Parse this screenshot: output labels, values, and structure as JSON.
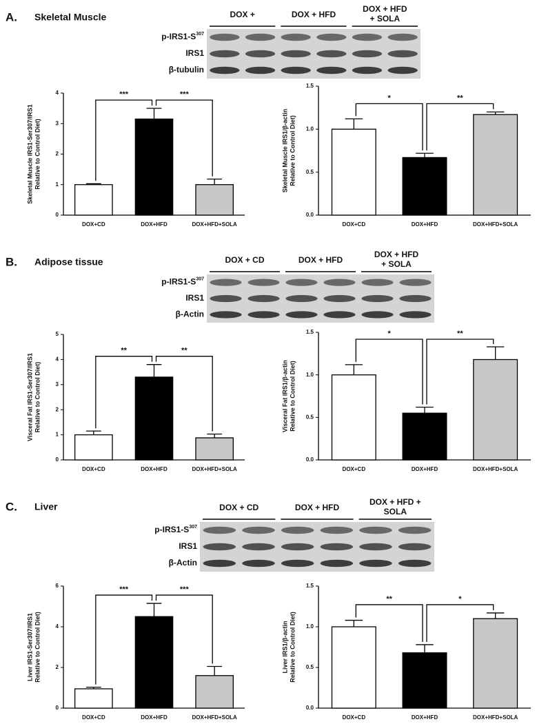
{
  "panels": [
    {
      "label": "A.",
      "title": "Skeletal Muscle",
      "lanes": [
        [
          "DOX +"
        ],
        [
          "DOX + HFD"
        ],
        [
          "DOX + HFD",
          "+ SOLA"
        ]
      ],
      "blot_rows": [
        {
          "text": "p-IRS1-S",
          "sup": "307"
        },
        {
          "text": "IRS1"
        },
        {
          "text": "β-tubulin"
        }
      ]
    },
    {
      "label": "B.",
      "title": "Adipose tissue",
      "lanes": [
        [
          "DOX + CD"
        ],
        [
          "DOX + HFD"
        ],
        [
          "DOX + HFD",
          "+ SOLA"
        ]
      ],
      "blot_rows": [
        {
          "text": "p-IRS1-S",
          "sup": "307"
        },
        {
          "text": "IRS1"
        },
        {
          "text": "β-Actin"
        }
      ]
    },
    {
      "label": "C.",
      "title": "Liver",
      "lanes": [
        [
          "DOX + CD"
        ],
        [
          "DOX + HFD"
        ],
        [
          "DOX + HFD +",
          "SOLA"
        ]
      ],
      "blot_rows": [
        {
          "text": "p-IRS1-S",
          "sup": "307"
        },
        {
          "text": "IRS1"
        },
        {
          "text": "β-Actin"
        }
      ]
    }
  ],
  "chart_data": [
    {
      "type": "bar",
      "y_label": [
        "Skeletal Muscle IRS1-Ser307/IRS1",
        "Relative to Control Diet)"
      ],
      "categories": [
        "DOX+CD",
        "DOX+HFD",
        "DOX+HFD+SOLA"
      ],
      "values": [
        1.0,
        3.15,
        1.0
      ],
      "errors": [
        0.03,
        0.35,
        0.18
      ],
      "colors": [
        "#ffffff",
        "#000000",
        "#c8c8c8"
      ],
      "ylim": [
        0,
        4
      ],
      "yticks": [
        0,
        1,
        2,
        3,
        4
      ],
      "annotations": [
        "***",
        "***"
      ]
    },
    {
      "type": "bar",
      "y_label": [
        "Skeletal Muscle IRS1/β-actin",
        "Relative to Control Diet)"
      ],
      "categories": [
        "DOX+CD",
        "DOX+HFD",
        "DOX+HFD+SOLA"
      ],
      "values": [
        1.0,
        0.67,
        1.17
      ],
      "errors": [
        0.12,
        0.05,
        0.03
      ],
      "colors": [
        "#ffffff",
        "#000000",
        "#c8c8c8"
      ],
      "ylim": [
        0,
        1.5
      ],
      "yticks": [
        {
          "value": 0,
          "label": "0.0"
        },
        {
          "value": 0.5,
          "label": "0.5"
        },
        {
          "value": 1,
          "label": "1.0"
        },
        {
          "value": 1.5,
          "label": "1.5"
        }
      ],
      "annotations": [
        "*",
        "**"
      ]
    },
    {
      "type": "bar",
      "y_label": [
        "Visceral Fat IRS1-Ser307/IRS1",
        "Relative to Control Diet)"
      ],
      "categories": [
        "DOX+CD",
        "DOX+HFD",
        "DOX+HFD+SOLA"
      ],
      "values": [
        1.0,
        3.3,
        0.88
      ],
      "errors": [
        0.15,
        0.5,
        0.15
      ],
      "colors": [
        "#ffffff",
        "#000000",
        "#c8c8c8"
      ],
      "ylim": [
        0,
        5
      ],
      "yticks": [
        0,
        1,
        2,
        3,
        4,
        5
      ],
      "annotations": [
        "**",
        "**"
      ]
    },
    {
      "type": "bar",
      "y_label": [
        "Visceral Fat IRS1/β-actin",
        "Relative to Control Diet)"
      ],
      "categories": [
        "DOX+CD",
        "DOX+HFD",
        "DOX+HFD+SOLA"
      ],
      "values": [
        1.0,
        0.55,
        1.18
      ],
      "errors": [
        0.12,
        0.07,
        0.15
      ],
      "colors": [
        "#ffffff",
        "#000000",
        "#c8c8c8"
      ],
      "ylim": [
        0,
        1.5
      ],
      "yticks": [
        {
          "value": 0,
          "label": "0.0"
        },
        {
          "value": 0.5,
          "label": "0.5"
        },
        {
          "value": 1,
          "label": "1.0"
        },
        {
          "value": 1.5,
          "label": "1.5"
        }
      ],
      "annotations": [
        "*",
        "**"
      ]
    },
    {
      "type": "bar",
      "y_label": [
        "Liver IRS1-Ser307/IRS1",
        "Relative to Control Diet)"
      ],
      "categories": [
        "DOX+CD",
        "DOX+HFD",
        "DOX+HFD+SOLA"
      ],
      "values": [
        0.95,
        4.5,
        1.6
      ],
      "errors": [
        0.08,
        0.65,
        0.45
      ],
      "colors": [
        "#ffffff",
        "#000000",
        "#c8c8c8"
      ],
      "ylim": [
        0,
        6
      ],
      "yticks": [
        0,
        2,
        4,
        6
      ],
      "annotations": [
        "***",
        "***"
      ]
    },
    {
      "type": "bar",
      "y_label": [
        "Liver IRS1/β-actin",
        "Relative to Control Diet)"
      ],
      "categories": [
        "DOX+CD",
        "DOX+HFD",
        "DOX+HFD+SOLA"
      ],
      "values": [
        1.0,
        0.68,
        1.1
      ],
      "errors": [
        0.08,
        0.1,
        0.07
      ],
      "colors": [
        "#ffffff",
        "#000000",
        "#c8c8c8"
      ],
      "ylim": [
        0,
        1.5
      ],
      "yticks": [
        {
          "value": 0,
          "label": "0.0"
        },
        {
          "value": 0.5,
          "label": "0.5"
        },
        {
          "value": 1,
          "label": "1.0"
        },
        {
          "value": 1.5,
          "label": "1.5"
        }
      ],
      "annotations": [
        "**",
        "*"
      ]
    }
  ]
}
